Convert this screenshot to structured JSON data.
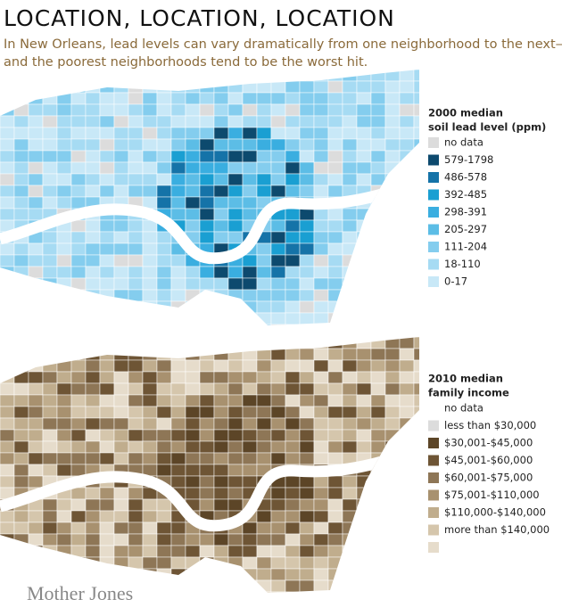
{
  "header": {
    "title": "LOCATION, LOCATION, LOCATION",
    "subtitle": [
      "In New Orleans, lead levels can vary dramatically from one neighborhood to the next—",
      "and the poorest neighborhoods tend to be the worst hit."
    ]
  },
  "maps": [
    {
      "legend_title": [
        "2000 median",
        "soil lead level (ppm)"
      ],
      "labels": [
        "no data",
        "579-1798",
        "486-578",
        "392-485",
        "298-391",
        "205-297",
        "111-204",
        "18-110",
        "0-17"
      ],
      "colors": [
        "#dcdcdc",
        "#0d4a6e",
        "#1573a8",
        "#1a9fd2",
        "#3aaee0",
        "#5cbde6",
        "#84cdee",
        "#a6dbf3",
        "#c8e8f7"
      ]
    },
    {
      "legend_title": [
        "2010 median",
        "family income"
      ],
      "labels": [
        "no data",
        "less than $30,000",
        "$30,001-$45,000",
        "$45,001-$60,000",
        "$60,001-$75,000",
        "$75,001-$110,000",
        "$110,000-$140,000",
        "more than $140,000"
      ],
      "colors": [
        "#dcdcdc",
        "#5c4527",
        "#6e5535",
        "#8e7656",
        "#a8916f",
        "#c0ad8d",
        "#d5c6ac",
        "#e6dccb"
      ]
    }
  ],
  "footer": {
    "logo": "Mother Jones"
  }
}
